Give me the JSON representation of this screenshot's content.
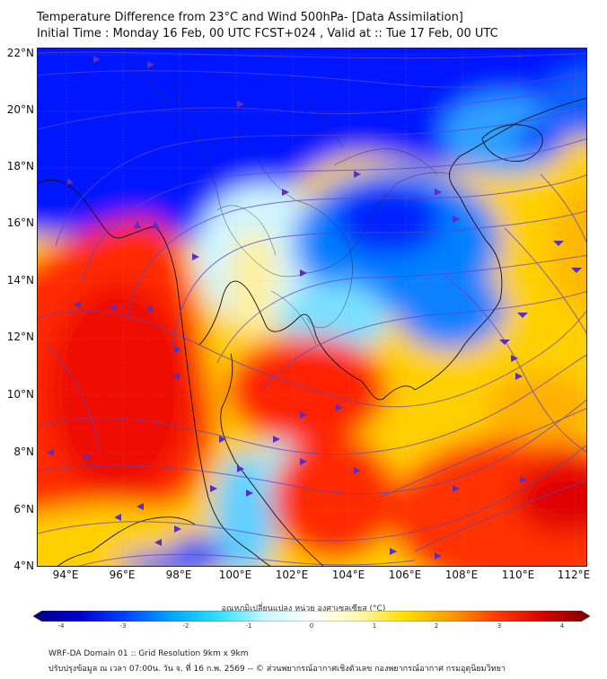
{
  "header": {
    "title": "Temperature Difference from 23°C and Wind 500hPa- [Data Assimilation]",
    "subtitle": "Initial Time : Monday 16 Feb, 00 UTC FCST+024 , Valid at ::  Tue 17 Feb, 00 UTC"
  },
  "map": {
    "lat_labels": [
      "22°N",
      "20°N",
      "18°N",
      "16°N",
      "14°N",
      "12°N",
      "10°N",
      "8°N",
      "6°N",
      "4°N"
    ],
    "lon_labels": [
      "94°E",
      "96°E",
      "98°E",
      "100°E",
      "102°E",
      "104°E",
      "106°E",
      "108°E",
      "110°E",
      "112°E"
    ],
    "extent": {
      "lon_min": 93,
      "lon_max": 112.5,
      "lat_min": 4,
      "lat_max": 22.2
    }
  },
  "colorbar": {
    "label": "อุณหภูมิเปลี่ยนแปลง หน่วย องศาเซลเซียส (°C)",
    "ticks": [
      "-4",
      "-3",
      "-2",
      "-1",
      "0",
      "1",
      "2",
      "3",
      "4"
    ],
    "colors": [
      "#00007f",
      "#0000d0",
      "#0044ff",
      "#00a8ff",
      "#30e0ff",
      "#c8f8ff",
      "#ffffff",
      "#fff8b0",
      "#ffe000",
      "#ff9a00",
      "#ff3a00",
      "#d40000",
      "#7f0000"
    ]
  },
  "footer": {
    "line1": "WRF-DA Domain 01 :: Grid Resolution 9km x 9km",
    "line2": "ปรับปรุงข้อมูล ณ เวลา 07:00น. วัน จ. ที่ 16 ก.พ. 2569 -- © ส่วนพยากรณ์อากาศเชิงตัวเลข กองพยากรณ์อากาศ กรมอุตุนิยมวิทยา"
  }
}
